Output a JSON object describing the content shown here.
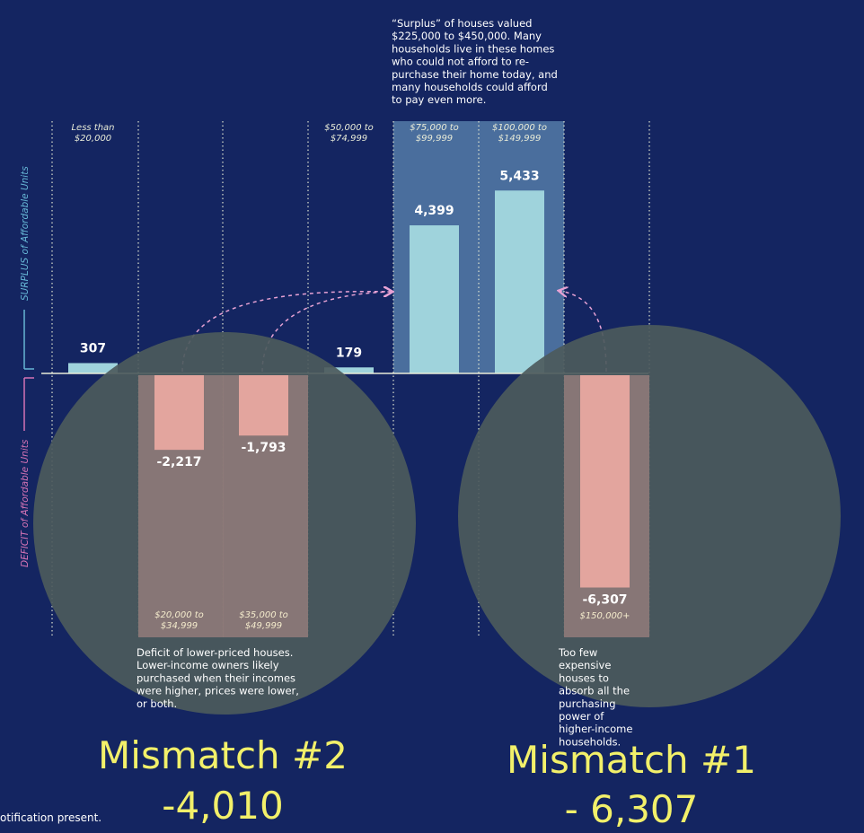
{
  "chart_data": {
    "type": "bar",
    "categories": [
      "Less than $20,000",
      "$20,000 to $34,999",
      "$35,000 to $49,999",
      "$50,000 to $74,999",
      "$75,000 to $99,999",
      "$100,000 to $149,999",
      "$150,000+"
    ],
    "category_lines": [
      [
        "Less than",
        "$20,000"
      ],
      [
        "$20,000 to",
        "$34,999"
      ],
      [
        "$35,000 to",
        "$49,999"
      ],
      [
        "$50,000 to",
        "$74,999"
      ],
      [
        "$75,000 to",
        "$99,999"
      ],
      [
        "$100,000 to",
        "$149,999"
      ],
      [
        "$150,000+"
      ]
    ],
    "values": [
      307,
      -2217,
      -1793,
      179,
      4399,
      5433,
      -6307
    ],
    "value_labels": [
      "307",
      "-2,217",
      "-1,793",
      "179",
      "4,399",
      "5,433",
      "-6,307"
    ],
    "ylabel_surplus": "SURPLUS of Affordable Units",
    "ylabel_deficit": "DEFICIT of Affordable Units",
    "colors": {
      "background": "#142561",
      "surplus_bar": "#9fd3dc",
      "deficit_bar": "#e3a59e",
      "surplus_zone": "#4a6e9d",
      "deficit_zone": "#8e7a79",
      "circle": "#4c5a5c",
      "mismatch_text": "#f2f06a",
      "arrow": "#e7a2d4",
      "surplus_axis": "#66b7d6",
      "deficit_axis": "#d573b5"
    },
    "annotations": {
      "surplus_note": [
        "“Surplus” of houses valued",
        "$225,000 to $450,000. Many",
        "households live in these homes",
        "who could not afford to re-",
        "purchase their home today, and",
        "many households could afford",
        "to pay even more."
      ],
      "deficit_note": [
        "Deficit of lower-priced houses.",
        "Lower-income owners likely",
        "purchased when their incomes",
        "were higher, prices were lower,",
        "or both."
      ],
      "expensive_note": [
        "Too few",
        "expensive",
        "houses to",
        "absorb all the",
        "purchasing",
        "power of",
        "higher-income",
        "households."
      ]
    },
    "mismatch": [
      {
        "title": "Mismatch #2",
        "value": "-4,010"
      },
      {
        "title": "Mismatch #1",
        "value": "- 6,307"
      }
    ]
  },
  "notification": "otification present."
}
